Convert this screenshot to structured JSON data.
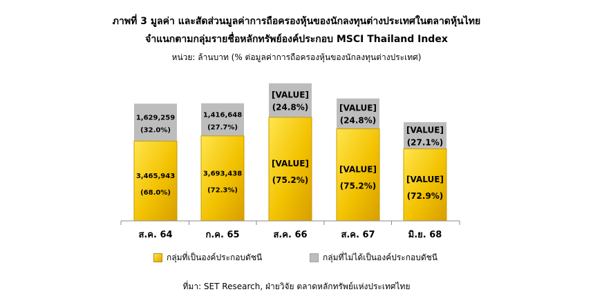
{
  "title_line1": "ภาพที่ 3 มูลค่า และสัดส่วนมูลค่าการถือครองหุ้นของนักลงทุนต่างประเทศในตลาดหุ้นไทย",
  "title_line2": "จำแนกตามกลุ่มรายชื่อหลักทรัพย์องค์ประกอบ MSCI Thailand Index",
  "unit": "หน่วย: ล้านบาท (% ต่อมูลค่าการถือครองหุ้นของนักลงทุนต่างประเทศ)",
  "source": "ที่มา: SET Research, ฝ่ายวิจัย ตลาดหลักทรัพย์แห่งประเทศไทย",
  "colors": {
    "constituent": "#f2c200",
    "non_constituent": "#bdbdbd"
  },
  "chart_data": {
    "type": "bar",
    "stacked": true,
    "categories": [
      "ส.ค. 64",
      "ก.ค. 65",
      "ส.ค. 66",
      "ส.ค. 67",
      "มิ.ย. 68"
    ],
    "series": [
      {
        "name": "กลุ่มที่เป็นองค์ประกอบดัชนี",
        "values": [
          3465943,
          3693438,
          4500000,
          4000000,
          3130000
        ],
        "value_labels": [
          "3,465,943",
          "3,693,438",
          "[VALUE]",
          "[VALUE]",
          "[VALUE]"
        ],
        "pct_labels": [
          "(68.0%)",
          "(72.3%)",
          "(75.2%)",
          "(75.2%)",
          "(72.9%)"
        ]
      },
      {
        "name": "กลุ่มที่ไม่ได้เป็นองค์ประกอบดัชนี",
        "values": [
          1629259,
          1416648,
          1480000,
          1320000,
          1160000
        ],
        "value_labels": [
          "1,629,259",
          "1,416,648",
          "[VALUE]",
          "[VALUE]",
          "[VALUE]"
        ],
        "pct_labels": [
          "(32.0%)",
          "(27.7%)",
          "(24.8%)",
          "(24.8%)",
          "(27.1%)"
        ]
      }
    ],
    "legend_position": "bottom",
    "grid": false
  }
}
